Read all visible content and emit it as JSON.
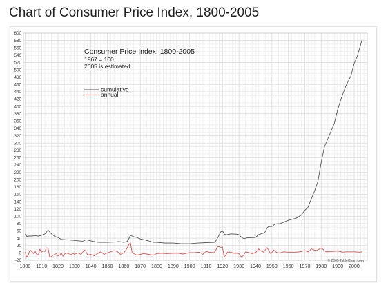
{
  "page": {
    "title": "Chart of Consumer Price Index, 1800-2005"
  },
  "chart_data": {
    "type": "line",
    "title": "Consumer Price Index, 1800-2005",
    "subtitle_lines": [
      "1967 = 100",
      "2005 is estimated"
    ],
    "credit": "© 2005 TableChart.com",
    "xlabel": "",
    "ylabel": "",
    "xlim": [
      1799,
      2008
    ],
    "ylim": [
      -20,
      600
    ],
    "x_ticks": [
      1800,
      1810,
      1820,
      1830,
      1840,
      1850,
      1860,
      1870,
      1880,
      1890,
      1900,
      1910,
      1920,
      1930,
      1940,
      1950,
      1960,
      1970,
      1980,
      1990,
      2000
    ],
    "y_ticks": [
      -20,
      0,
      20,
      40,
      60,
      80,
      100,
      120,
      140,
      160,
      180,
      200,
      220,
      240,
      260,
      280,
      300,
      320,
      340,
      360,
      380,
      400,
      420,
      440,
      460,
      480,
      500,
      520,
      540,
      560,
      580,
      600
    ],
    "grid": true,
    "legend_position": "top-left",
    "series": [
      {
        "name": "cumulative",
        "color": "#555555",
        "x": [
          1800,
          1801,
          1802,
          1804,
          1806,
          1808,
          1810,
          1811,
          1812,
          1813,
          1814,
          1815,
          1816,
          1818,
          1820,
          1822,
          1825,
          1830,
          1835,
          1837,
          1840,
          1843,
          1845,
          1850,
          1855,
          1857,
          1860,
          1862,
          1863,
          1864,
          1865,
          1866,
          1868,
          1870,
          1873,
          1875,
          1878,
          1880,
          1885,
          1890,
          1895,
          1900,
          1905,
          1910,
          1915,
          1916,
          1917,
          1918,
          1919,
          1920,
          1921,
          1922,
          1925,
          1929,
          1930,
          1931,
          1932,
          1933,
          1935,
          1940,
          1942,
          1944,
          1945,
          1946,
          1947,
          1948,
          1950,
          1952,
          1955,
          1960,
          1965,
          1968,
          1970,
          1972,
          1974,
          1976,
          1978,
          1980,
          1982,
          1985,
          1988,
          1990,
          1992,
          1995,
          1998,
          2000,
          2002,
          2005
        ],
        "values": [
          51,
          45,
          46,
          46,
          47,
          46,
          48,
          50,
          52,
          57,
          63,
          57,
          52,
          45,
          42,
          37,
          36,
          34,
          32,
          36,
          33,
          30,
          29,
          29,
          30,
          31,
          29,
          31,
          38,
          48,
          46,
          44,
          42,
          38,
          35,
          33,
          29,
          29,
          27,
          27,
          25,
          25,
          27,
          28,
          29,
          33,
          41,
          50,
          58,
          60,
          52,
          49,
          52,
          51,
          50,
          45,
          41,
          39,
          41,
          42,
          50,
          53,
          54,
          58,
          68,
          72,
          72,
          79,
          80,
          89,
          95,
          104,
          116,
          125,
          148,
          170,
          195,
          248,
          290,
          322,
          354,
          391,
          420,
          456,
          483,
          517,
          538,
          585
        ]
      },
      {
        "name": "annual",
        "color": "#e05050",
        "x": [
          1800,
          1801,
          1802,
          1803,
          1804,
          1805,
          1806,
          1807,
          1808,
          1809,
          1810,
          1811,
          1812,
          1813,
          1814,
          1815,
          1816,
          1817,
          1818,
          1819,
          1820,
          1821,
          1822,
          1823,
          1824,
          1825,
          1826,
          1827,
          1828,
          1829,
          1830,
          1832,
          1834,
          1836,
          1837,
          1838,
          1840,
          1842,
          1844,
          1846,
          1848,
          1850,
          1852,
          1854,
          1856,
          1858,
          1860,
          1861,
          1862,
          1863,
          1864,
          1865,
          1866,
          1867,
          1868,
          1870,
          1872,
          1874,
          1876,
          1878,
          1880,
          1883,
          1886,
          1890,
          1893,
          1896,
          1900,
          1903,
          1906,
          1908,
          1910,
          1912,
          1914,
          1915,
          1916,
          1917,
          1918,
          1919,
          1920,
          1921,
          1922,
          1923,
          1925,
          1927,
          1929,
          1930,
          1931,
          1932,
          1933,
          1934,
          1936,
          1938,
          1940,
          1941,
          1942,
          1943,
          1945,
          1946,
          1947,
          1948,
          1949,
          1950,
          1951,
          1953,
          1955,
          1957,
          1960,
          1965,
          1968,
          1970,
          1972,
          1973,
          1974,
          1975,
          1977,
          1979,
          1980,
          1981,
          1982,
          1983,
          1985,
          1987,
          1990,
          1993,
          1995,
          2000,
          2003,
          2005
        ],
        "values": [
          2,
          -12,
          -5,
          8,
          4,
          -2,
          5,
          -3,
          -6,
          10,
          2,
          5,
          4,
          14,
          12,
          -12,
          -10,
          -6,
          -4,
          -2,
          -8,
          -6,
          0,
          -9,
          -3,
          0,
          -2,
          -3,
          -5,
          -1,
          -4,
          0,
          -4,
          8,
          4,
          -6,
          -4,
          -8,
          -2,
          3,
          -4,
          0,
          3,
          6,
          4,
          -4,
          0,
          6,
          13,
          22,
          28,
          2,
          -2,
          -4,
          -6,
          -4,
          -2,
          -3,
          -5,
          -6,
          -2,
          -1,
          -2,
          -1,
          -1,
          -3,
          1,
          1,
          2,
          -4,
          4,
          2,
          1,
          1,
          8,
          17,
          17,
          15,
          16,
          -11,
          -6,
          2,
          2,
          -1,
          -1,
          -2,
          -9,
          -10,
          -5,
          3,
          1,
          -2,
          1,
          5,
          11,
          6,
          2,
          8,
          14,
          8,
          -1,
          1,
          8,
          1,
          0,
          3,
          2,
          2,
          4,
          6,
          3,
          6,
          11,
          9,
          6,
          11,
          13,
          10,
          6,
          3,
          4,
          4,
          5,
          2,
          3,
          3,
          2,
          3
        ]
      }
    ]
  }
}
